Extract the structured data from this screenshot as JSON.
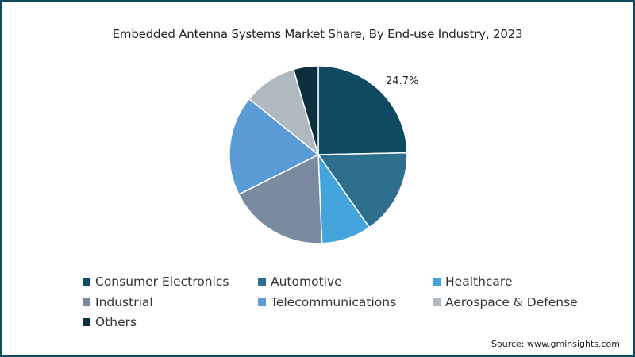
{
  "chart_data": {
    "type": "pie",
    "title": "Embedded Antenna Systems Market Share, By End-use Industry, 2023",
    "categories": [
      "Consumer Electronics",
      "Automotive",
      "Healthcare",
      "Industrial",
      "Telecommunications",
      "Aerospace & Defense",
      "Others"
    ],
    "values": [
      24.7,
      15.6,
      9.1,
      18.3,
      18.2,
      9.7,
      4.5
    ],
    "colors": [
      "#0e4b63",
      "#2e6f8e",
      "#44a5dc",
      "#7a8ba0",
      "#5b9bd5",
      "#b0b8c0",
      "#0b2f3d"
    ],
    "data_labels": [
      {
        "category": "Consumer Electronics",
        "label": "24.7%"
      }
    ],
    "start_angle_deg": 0,
    "direction": "clockwise",
    "legend_position": "bottom",
    "source": "Source: www.gminsights.com"
  },
  "title": "Embedded Antenna Systems Market Share, By End-use Industry, 2023",
  "label_24_7": "24.7%",
  "legend": [
    {
      "label": "Consumer Electronics",
      "color": "#0e4b63"
    },
    {
      "label": "Automotive",
      "color": "#2e6f8e"
    },
    {
      "label": "Healthcare",
      "color": "#44a5dc"
    },
    {
      "label": "Industrial",
      "color": "#7a8ba0"
    },
    {
      "label": "Telecommunications",
      "color": "#5b9bd5"
    },
    {
      "label": "Aerospace & Defense",
      "color": "#b0b8c0"
    },
    {
      "label": "Others",
      "color": "#0b2f3d"
    }
  ],
  "source": "Source: www.gminsights.com",
  "frame_color": "#0d4a5e"
}
